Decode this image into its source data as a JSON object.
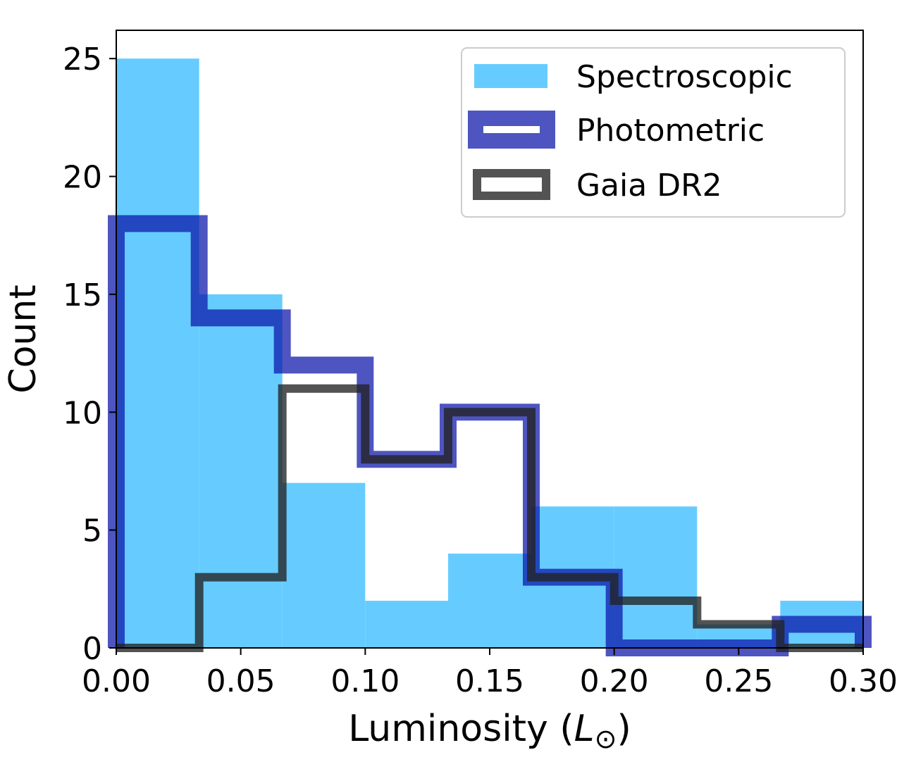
{
  "chart_data": {
    "type": "histogram",
    "xlabel_main": "Luminosity (",
    "xlabel_symbol": "L",
    "xlabel_sub": "⊙",
    "xlabel_end": ")",
    "ylabel": "Count",
    "xlim": [
      0.0,
      0.3
    ],
    "ylim": [
      0,
      26.2
    ],
    "x_ticks": [
      "0.00",
      "0.05",
      "0.10",
      "0.15",
      "0.20",
      "0.25",
      "0.30"
    ],
    "x_tick_values": [
      0.0,
      0.05,
      0.1,
      0.15,
      0.2,
      0.25,
      0.3
    ],
    "y_ticks": [
      "0",
      "5",
      "10",
      "15",
      "20",
      "25"
    ],
    "y_tick_values": [
      0,
      5,
      10,
      15,
      20,
      25
    ],
    "grid": false,
    "legend_position": "top-right",
    "series": [
      {
        "name": "Spectroscopic",
        "style": "filled",
        "color": "#66CCFF",
        "bin_edges": [
          0.0,
          0.0333,
          0.0667,
          0.1,
          0.1333,
          0.1667,
          0.2,
          0.2333,
          0.2667,
          0.3
        ],
        "counts": [
          25,
          15,
          7,
          2,
          4,
          6,
          6,
          1,
          2
        ]
      },
      {
        "name": "Photometric",
        "style": "step",
        "color": "#0A14A8",
        "bin_edges": [
          0.0,
          0.0333,
          0.0667,
          0.1,
          0.1333,
          0.1667,
          0.2,
          0.2333,
          0.2667,
          0.3
        ],
        "counts": [
          18,
          14,
          12,
          8,
          10,
          3,
          0,
          0,
          1
        ]
      },
      {
        "name": "Gaia DR2",
        "style": "step",
        "color": "#222222",
        "bin_edges": [
          0.0,
          0.0333,
          0.0667,
          0.1,
          0.1333,
          0.1667,
          0.2,
          0.2333,
          0.2667,
          0.3
        ],
        "counts": [
          0,
          3,
          11,
          8,
          10,
          3,
          2,
          1,
          0
        ]
      }
    ]
  }
}
